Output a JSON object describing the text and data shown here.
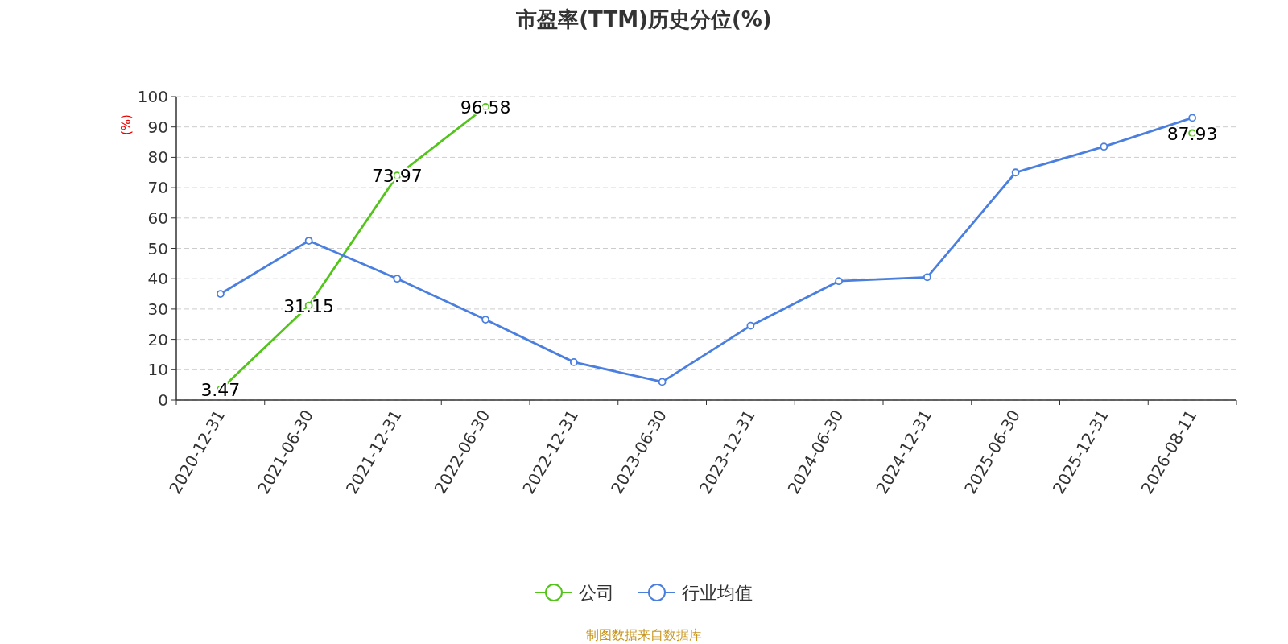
{
  "chart_data": {
    "type": "line",
    "title": "市盈率(TTM)历史分位(%)",
    "ylabel": "(%)",
    "categories": [
      "2020-12-31",
      "2021-06-30",
      "2021-12-31",
      "2022-06-30",
      "2022-12-31",
      "2023-06-30",
      "2023-12-31",
      "2024-06-30",
      "2024-12-31",
      "2025-06-30",
      "2025-12-31",
      "2026-08-11"
    ],
    "series": [
      {
        "name": "公司",
        "color": "#52c41a",
        "values": [
          3.47,
          31.15,
          73.97,
          96.58,
          null,
          null,
          null,
          null,
          null,
          null,
          null,
          87.93
        ],
        "value_labels": [
          "3.47",
          "31.15",
          "73.97",
          "96.58",
          null,
          null,
          null,
          null,
          null,
          null,
          null,
          "87.93"
        ]
      },
      {
        "name": "行业均值",
        "color": "#4a7fe0",
        "values": [
          35,
          52.5,
          40,
          26.5,
          12.5,
          6,
          24.5,
          39.2,
          40.5,
          75,
          83.5,
          93
        ]
      }
    ],
    "ylim": [
      0,
      100
    ],
    "yticks": [
      0,
      10,
      20,
      30,
      40,
      50,
      60,
      70,
      80,
      90,
      100
    ],
    "grid": "y",
    "legend": "bottom",
    "marker": "circle",
    "line_style": "solid",
    "annotations": [
      "制图数据来自数据库"
    ]
  }
}
